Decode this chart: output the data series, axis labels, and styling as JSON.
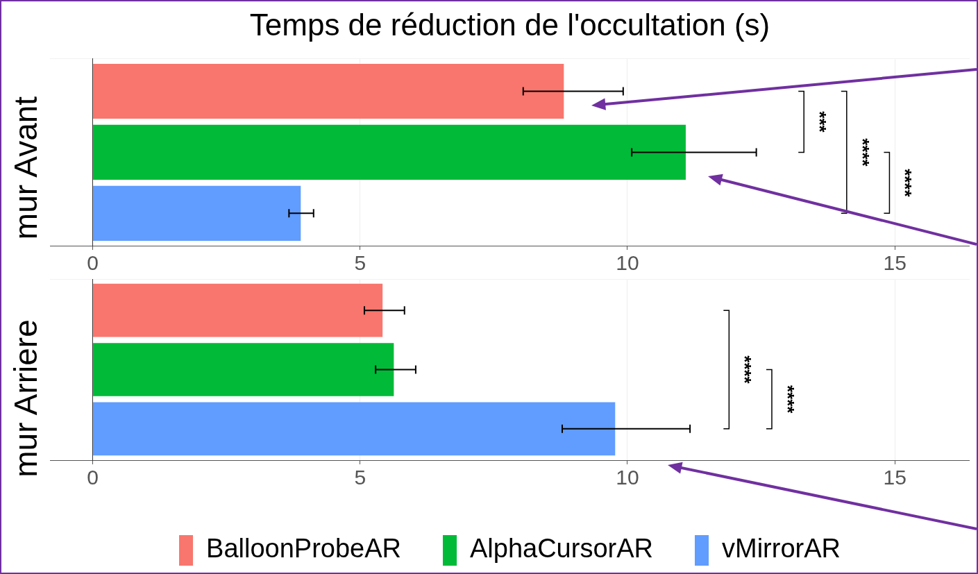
{
  "chart_data": [
    {
      "type": "bar",
      "orientation": "horizontal",
      "title": "Temps de réduction de l'occultation (s)",
      "ylabel": "mur Avant",
      "categories": [
        null
      ],
      "series": [
        {
          "color": "#f8766d",
          "values": [
            8.81
          ],
          "errors": [
            [
              8.05,
              9.92
            ]
          ]
        },
        {
          "color": "#00ba38",
          "values": [
            11.09
          ],
          "errors": [
            [
              10.08,
              12.41
            ]
          ]
        },
        {
          "color": "#619cff",
          "values": [
            3.89
          ],
          "errors": [
            [
              3.67,
              4.13
            ]
          ]
        }
      ],
      "xlim": [
        -0.8,
        16.4
      ],
      "xticks": [
        0,
        5,
        10,
        15
      ],
      "grid": true,
      "legend": false,
      "annotations": [
        "***",
        "****",
        "****"
      ]
    },
    {
      "type": "bar",
      "orientation": "horizontal",
      "ylabel": "mur Arriere",
      "categories": [
        null
      ],
      "series": [
        {
          "name": "BalloonProbeAR",
          "color": "#f8766d",
          "values": [
            5.42
          ],
          "errors": [
            [
              5.08,
              5.83
            ]
          ]
        },
        {
          "name": "AlphaCursorAR",
          "color": "#00ba38",
          "values": [
            5.63
          ],
          "errors": [
            [
              5.29,
              6.04
            ]
          ]
        },
        {
          "name": "vMirrorAR",
          "color": "#619cff",
          "values": [
            9.77
          ],
          "errors": [
            [
              8.78,
              11.17
            ]
          ]
        }
      ],
      "xlim": [
        -0.8,
        16.4
      ],
      "xticks": [
        0,
        5,
        10,
        15
      ],
      "grid": true,
      "legend": "bottom",
      "annotations": [
        "****",
        "****"
      ]
    }
  ]
}
